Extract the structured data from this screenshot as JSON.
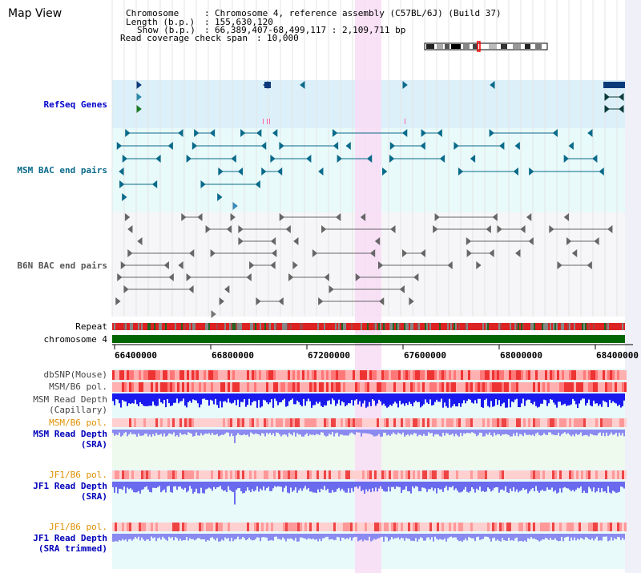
{
  "page": {
    "title": "Map View"
  },
  "info": {
    "chromosome_key": "Chromosome",
    "chromosome_val": "Chromosome 4, reference assembly (C57BL/6J) (Build 37)",
    "length_key": "Length (b.p.)",
    "length_val": "155,630,120",
    "show_key": "Show (b.p.)",
    "show_val": "66,389,407-68,499,117 : 2,109,711 bp",
    "coverage_key": "Read coverage check span",
    "coverage_val": "10,000"
  },
  "tracks": {
    "refseq": "RefSeq Genes",
    "msm_bac": "MSM BAC end pairs",
    "b6n_bac": "B6N BAC end pairs",
    "repeat": "Repeat",
    "chromosome": "chromosome 4",
    "dbsnp": "dbSNP(Mouse)",
    "msm_pol": "MSM/B6 pol.",
    "msm_depth_cap_1": "MSM Read Depth",
    "msm_depth_cap_2": "(Capillary)",
    "msm_pol_2": "MSM/B6 pol.",
    "msm_depth_sra_1": "MSM Read Depth",
    "msm_depth_sra_2": "(SRA)",
    "jf1_pol": "JF1/B6 pol.",
    "jf1_depth_1": "JF1 Read Depth",
    "jf1_depth_2": "(SRA)",
    "jf1_pol_2": "JF1/B6 pol.",
    "jf1_trim_1": "JF1 Read Depth",
    "jf1_trim_2": "(SRA trimmed)"
  },
  "axis": {
    "ticks": [
      "66400000",
      "66800000",
      "67200000",
      "67600000",
      "68000000",
      "68400000"
    ]
  },
  "colors": {
    "refseq_bg": "#dcf0fa",
    "msm_bg": "#e8fafa",
    "b6n_bg": "#f6f6f8",
    "highlight": "#f8dcf4",
    "refseq_label": "#0000cc",
    "msm_label": "#0a6a8a",
    "b6n_label": "#555555",
    "orange_label": "#e09000",
    "blue_label": "#0000bb",
    "chromosome_bar": "#006600"
  }
}
